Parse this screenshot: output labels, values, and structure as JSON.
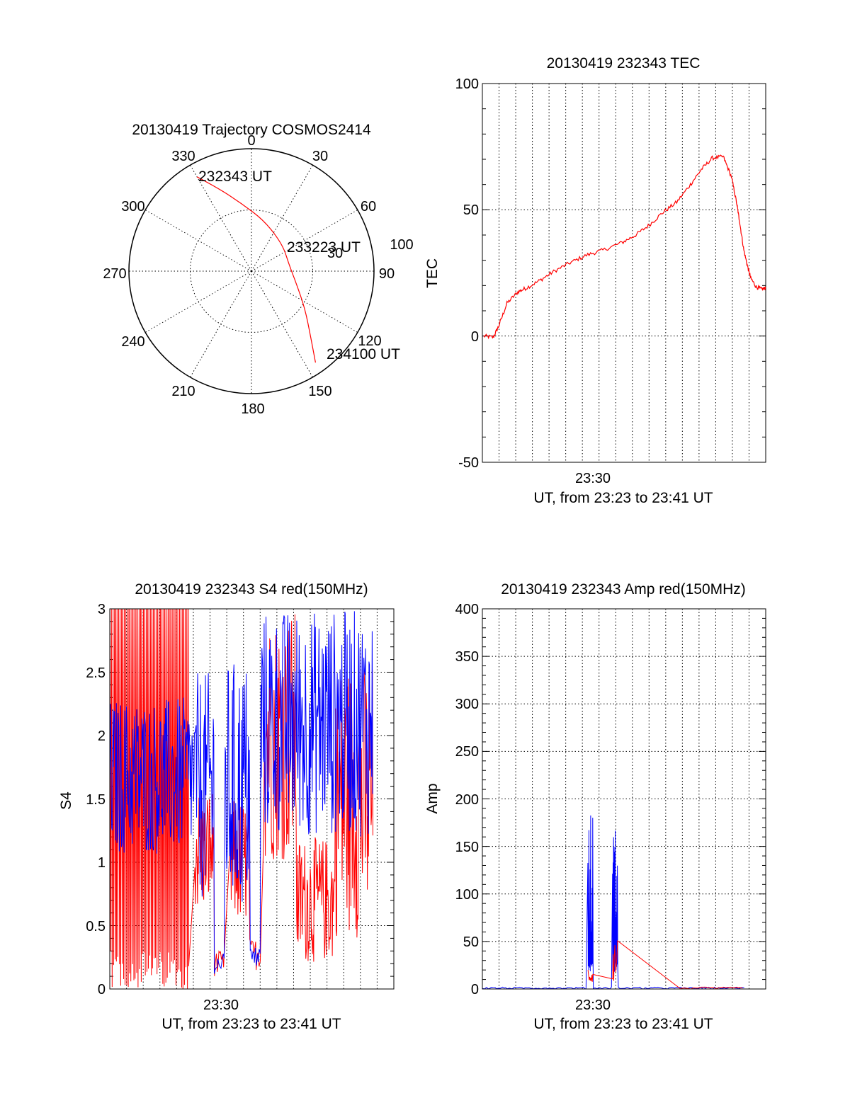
{
  "colors": {
    "red": "#ff0000",
    "blue": "#0000ff",
    "axis": "#000000",
    "grid": "#000000"
  },
  "chart_data": [
    {
      "id": "trajectory",
      "type": "polar",
      "title": "20130419 Trajectory COSMOS2414",
      "azimuth_labels": [
        "0",
        "30",
        "60",
        "90",
        "120",
        "150",
        "180",
        "210",
        "240",
        "270",
        "300",
        "330"
      ],
      "elevation_ring_labels": [
        "30",
        "100"
      ],
      "labels": {
        "start": "232343 UT",
        "mid": "233223 UT",
        "end": "234100 UT"
      },
      "track": [
        {
          "az": 330,
          "el": 10
        },
        {
          "az": 338,
          "el": 24
        },
        {
          "az": 352,
          "el": 40
        },
        {
          "az": 15,
          "el": 52
        },
        {
          "az": 50,
          "el": 60
        },
        {
          "az": 80,
          "el": 62
        },
        {
          "az": 105,
          "el": 56
        },
        {
          "az": 125,
          "el": 42
        },
        {
          "az": 138,
          "el": 25
        },
        {
          "az": 145,
          "el": 8
        }
      ]
    },
    {
      "id": "tec",
      "type": "line",
      "title": "20130419 232343 TEC",
      "ylabel": "TEC",
      "xtick_label": "23:30",
      "xlabel": "UT, from 23:23 to 23:41 UT",
      "ylim": [
        -50,
        100
      ],
      "yticks": [
        "-50",
        "0",
        "50",
        "100"
      ],
      "series": [
        {
          "color": "red",
          "points": [
            [
              0.045,
              0.0
            ],
            [
              0.08,
              -0.5
            ],
            [
              0.1,
              4.0
            ],
            [
              0.13,
              13.0
            ],
            [
              0.17,
              17.5
            ],
            [
              0.2,
              19.0
            ],
            [
              0.25,
              22.0
            ],
            [
              0.3,
              25.5
            ],
            [
              0.36,
              29.0
            ],
            [
              0.42,
              32.0
            ],
            [
              0.48,
              34.0
            ],
            [
              0.55,
              37.0
            ],
            [
              0.6,
              40.0
            ],
            [
              0.65,
              44.0
            ],
            [
              0.7,
              49.0
            ],
            [
              0.75,
              53.0
            ],
            [
              0.8,
              60.0
            ],
            [
              0.84,
              66.0
            ],
            [
              0.88,
              70.5
            ],
            [
              0.92,
              71.0
            ],
            [
              0.95,
              63.0
            ],
            [
              0.97,
              52.0
            ],
            [
              0.98,
              45.0
            ],
            [
              0.995,
              34.0
            ],
            [
              1.01,
              27.0
            ],
            [
              1.02,
              23.0
            ],
            [
              1.04,
              19.5
            ],
            [
              1.06,
              18.5
            ],
            [
              1.075,
              19.0
            ]
          ]
        }
      ]
    },
    {
      "id": "s4",
      "type": "line",
      "title": "20130419 232343 S4 red(150MHz)",
      "ylabel": "S4",
      "xtick_label": "23:30",
      "xlabel": "UT, from 23:23 to 23:41 UT",
      "ylim": [
        0,
        3
      ],
      "yticks": [
        "0",
        "0.5",
        "1",
        "1.5",
        "2",
        "2.5",
        "3"
      ],
      "series": [
        {
          "color": "red",
          "segments": [
            {
              "x0": 0.04,
              "x1": 0.33,
              "mode": "spikes",
              "low": 0.0,
              "high": 3.0,
              "n": 110
            },
            {
              "x0": 0.35,
              "x1": 0.42,
              "mode": "noise",
              "low": 0.6,
              "high": 1.6,
              "n": 40
            },
            {
              "x0": 0.42,
              "x1": 0.46,
              "mode": "noise",
              "low": 0.1,
              "high": 0.3,
              "n": 12
            },
            {
              "x0": 0.48,
              "x1": 0.55,
              "mode": "noise",
              "low": 0.5,
              "high": 1.5,
              "n": 40
            },
            {
              "x0": 0.55,
              "x1": 0.59,
              "mode": "noise",
              "low": 0.15,
              "high": 0.4,
              "n": 12
            },
            {
              "x0": 0.6,
              "x1": 0.72,
              "mode": "noise",
              "low": 1.0,
              "high": 3.0,
              "n": 60
            },
            {
              "x0": 0.72,
              "x1": 0.86,
              "mode": "noise",
              "low": 0.2,
              "high": 1.2,
              "n": 70
            },
            {
              "x0": 0.86,
              "x1": 1.0,
              "mode": "noise",
              "low": 0.4,
              "high": 2.6,
              "n": 70
            }
          ]
        },
        {
          "color": "blue",
          "segments": [
            {
              "x0": 0.04,
              "x1": 0.36,
              "mode": "noise",
              "low": 1.05,
              "high": 2.3,
              "n": 150
            },
            {
              "x0": 0.36,
              "x1": 0.42,
              "mode": "noise",
              "low": 0.7,
              "high": 2.5,
              "n": 30
            },
            {
              "x0": 0.42,
              "x1": 0.46,
              "mode": "noise",
              "low": 0.12,
              "high": 0.28,
              "n": 12
            },
            {
              "x0": 0.46,
              "x1": 0.55,
              "mode": "noise",
              "low": 0.6,
              "high": 2.6,
              "n": 45
            },
            {
              "x0": 0.55,
              "x1": 0.59,
              "mode": "noise",
              "low": 0.15,
              "high": 0.35,
              "n": 12
            },
            {
              "x0": 0.59,
              "x1": 1.0,
              "mode": "noise",
              "low": 1.2,
              "high": 3.0,
              "n": 200
            }
          ]
        }
      ]
    },
    {
      "id": "amp",
      "type": "line",
      "title": "20130419 232343 Amp red(150MHz)",
      "ylabel": "Amp",
      "xtick_label": "23:30",
      "xlabel": "UT, from 23:23 to 23:41 UT",
      "ylim": [
        0,
        400
      ],
      "yticks": [
        "0",
        "50",
        "100",
        "150",
        "200",
        "250",
        "300",
        "350",
        "400"
      ],
      "series": [
        {
          "color": "blue",
          "segments": [
            {
              "x0": 0.04,
              "x1": 0.425,
              "mode": "flat",
              "low": 0,
              "high": 2,
              "n": 60
            },
            {
              "x0": 0.425,
              "x1": 0.445,
              "mode": "burst",
              "low": 60,
              "high": 202,
              "n": 20
            },
            {
              "x0": 0.445,
              "x1": 0.515,
              "mode": "flat",
              "low": 0,
              "high": 2,
              "n": 12
            },
            {
              "x0": 0.515,
              "x1": 0.535,
              "mode": "burst",
              "low": 60,
              "high": 172,
              "n": 20
            },
            {
              "x0": 0.535,
              "x1": 1.0,
              "mode": "flat",
              "low": 0,
              "high": 2,
              "n": 70
            }
          ]
        },
        {
          "color": "red",
          "segments": [
            {
              "x0": 0.425,
              "x1": 0.445,
              "mode": "noise",
              "low": 5,
              "high": 25,
              "n": 10
            },
            {
              "x0": 0.515,
              "x1": 0.535,
              "mode": "noise",
              "low": 5,
              "high": 55,
              "n": 10
            },
            {
              "x0": 0.76,
              "x1": 1.0,
              "mode": "flat",
              "low": 0,
              "high": 2,
              "n": 20
            }
          ]
        }
      ]
    }
  ]
}
